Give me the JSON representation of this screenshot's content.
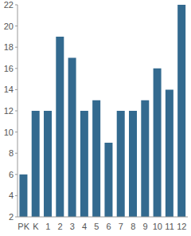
{
  "chart_data": {
    "type": "bar",
    "categories": [
      "PK",
      "K",
      "1",
      "2",
      "3",
      "4",
      "5",
      "6",
      "7",
      "8",
      "9",
      "10",
      "11",
      "12"
    ],
    "values": [
      6,
      12,
      12,
      19,
      17,
      12,
      13,
      9,
      12,
      12,
      13,
      16,
      14,
      22
    ],
    "color": "#336a8f",
    "ylim": [
      2,
      22
    ],
    "yticks": [
      2,
      4,
      6,
      8,
      10,
      12,
      14,
      16,
      18,
      20,
      22
    ],
    "grid": false
  }
}
